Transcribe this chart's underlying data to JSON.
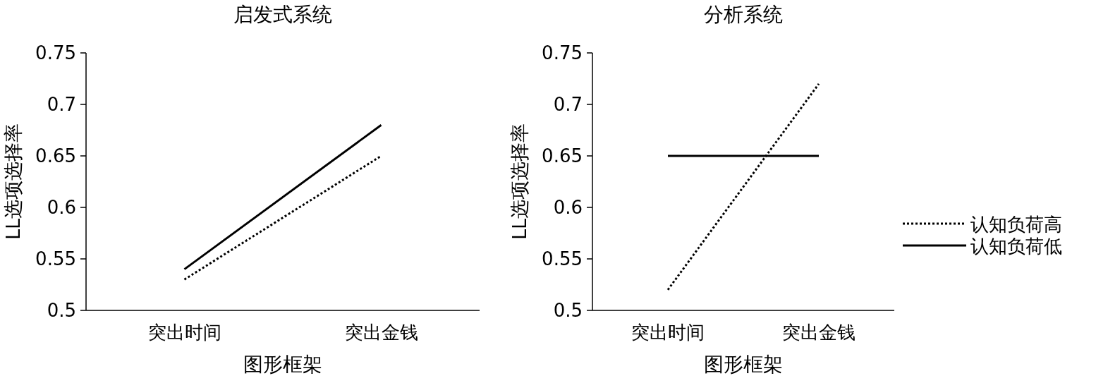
{
  "chart_data": [
    {
      "type": "line",
      "title": "启发式系统",
      "xlabel": "图形框架",
      "ylabel": "LL选项选择率",
      "categories": [
        "突出时间",
        "突出金钱"
      ],
      "ylim": [
        0.5,
        0.75
      ],
      "yticks": [
        0.5,
        0.55,
        0.6,
        0.65,
        0.7,
        0.75
      ],
      "grid": false,
      "legend": false,
      "series": [
        {
          "color": "#000000",
          "line_style": "dotted",
          "values": [
            0.53,
            0.65
          ]
        },
        {
          "color": "#000000",
          "line_style": "solid",
          "values": [
            0.54,
            0.68
          ]
        }
      ]
    },
    {
      "type": "line",
      "title": "分析系统",
      "xlabel": "图形框架",
      "ylabel": "LL选项选择率",
      "categories": [
        "突出时间",
        "突出金钱"
      ],
      "ylim": [
        0.5,
        0.75
      ],
      "yticks": [
        0.5,
        0.55,
        0.6,
        0.65,
        0.7,
        0.75
      ],
      "grid": false,
      "legend": "right",
      "series": [
        {
          "name": "认知负荷高",
          "color": "#000000",
          "line_style": "dotted",
          "values": [
            0.52,
            0.72
          ]
        },
        {
          "name": "认知负荷低",
          "color": "#000000",
          "line_style": "solid",
          "values": [
            0.65,
            0.65
          ]
        }
      ]
    }
  ]
}
